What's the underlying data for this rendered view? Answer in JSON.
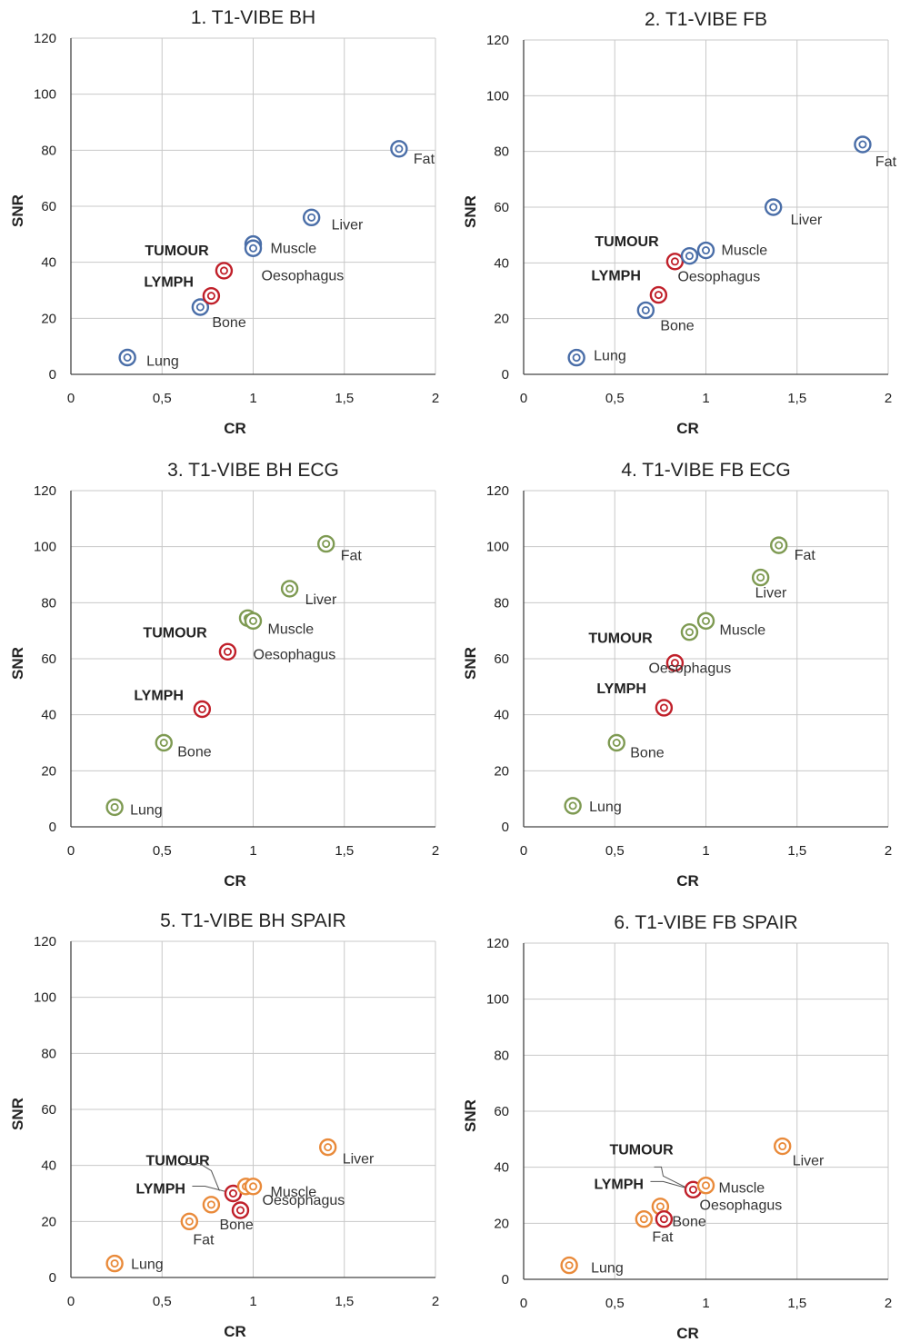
{
  "colors": {
    "set1": "#4a6ea8",
    "set2": "#7e9a52",
    "set3": "#e98a3a",
    "highlight": "#c0202a"
  },
  "chart_data": [
    {
      "type": "scatter",
      "title": "1. T1-VIBE BH",
      "xlabel": "CR",
      "ylabel": "SNR",
      "xlim": [
        0,
        2
      ],
      "ylim": [
        0,
        120
      ],
      "xticks": [
        "0",
        "0,5",
        "1",
        "1,5",
        "2"
      ],
      "yticks": [
        "0",
        "20",
        "40",
        "60",
        "80",
        "100",
        "120"
      ],
      "grid": true,
      "marker_color": "#4a6ea8",
      "points": [
        {
          "label": "Lung",
          "x": 0.31,
          "y": 6,
          "highlight": false
        },
        {
          "label": "Bone",
          "x": 0.71,
          "y": 24,
          "highlight": false
        },
        {
          "label": "LYMPH",
          "x": 0.77,
          "y": 28,
          "highlight": true
        },
        {
          "label": "TUMOUR",
          "x": 0.84,
          "y": 37,
          "highlight": true
        },
        {
          "label": "Muscle",
          "x": 1.0,
          "y": 46.5,
          "highlight": false
        },
        {
          "label": "Oesophagus",
          "x": 1.0,
          "y": 45,
          "highlight": false
        },
        {
          "label": "Liver",
          "x": 1.32,
          "y": 56,
          "highlight": false
        },
        {
          "label": "Fat",
          "x": 1.8,
          "y": 80.5,
          "highlight": false
        }
      ]
    },
    {
      "type": "scatter",
      "title": "2. T1-VIBE FB",
      "xlabel": "CR",
      "ylabel": "SNR",
      "xlim": [
        0,
        2
      ],
      "ylim": [
        0,
        120
      ],
      "xticks": [
        "0",
        "0,5",
        "1",
        "1,5",
        "2"
      ],
      "yticks": [
        "0",
        "20",
        "40",
        "60",
        "80",
        "100",
        "120"
      ],
      "grid": true,
      "marker_color": "#4a6ea8",
      "points": [
        {
          "label": "Lung",
          "x": 0.29,
          "y": 6,
          "highlight": false
        },
        {
          "label": "Bone",
          "x": 0.67,
          "y": 23,
          "highlight": false
        },
        {
          "label": "LYMPH",
          "x": 0.74,
          "y": 28.5,
          "highlight": true
        },
        {
          "label": "TUMOUR",
          "x": 0.83,
          "y": 40.5,
          "highlight": true
        },
        {
          "label": "Oesophagus",
          "x": 0.91,
          "y": 42.5,
          "highlight": false
        },
        {
          "label": "Muscle",
          "x": 1.0,
          "y": 44.5,
          "highlight": false
        },
        {
          "label": "Liver",
          "x": 1.37,
          "y": 60,
          "highlight": false
        },
        {
          "label": "Fat",
          "x": 1.86,
          "y": 82.5,
          "highlight": false
        }
      ]
    },
    {
      "type": "scatter",
      "title": "3. T1-VIBE BH ECG",
      "xlabel": "CR",
      "ylabel": "SNR",
      "xlim": [
        0,
        2
      ],
      "ylim": [
        0,
        120
      ],
      "xticks": [
        "0",
        "0,5",
        "1",
        "1,5",
        "2"
      ],
      "yticks": [
        "0",
        "20",
        "40",
        "60",
        "80",
        "100",
        "120"
      ],
      "grid": true,
      "marker_color": "#7e9a52",
      "points": [
        {
          "label": "Lung",
          "x": 0.24,
          "y": 7,
          "highlight": false
        },
        {
          "label": "Bone",
          "x": 0.51,
          "y": 30,
          "highlight": false
        },
        {
          "label": "LYMPH",
          "x": 0.72,
          "y": 42,
          "highlight": true
        },
        {
          "label": "TUMOUR",
          "x": 0.86,
          "y": 62.5,
          "highlight": true
        },
        {
          "label": "Muscle",
          "x": 0.97,
          "y": 74.5,
          "highlight": false
        },
        {
          "label": "Oesophagus",
          "x": 1.0,
          "y": 73.5,
          "highlight": false
        },
        {
          "label": "Liver",
          "x": 1.2,
          "y": 85,
          "highlight": false
        },
        {
          "label": "Fat",
          "x": 1.4,
          "y": 101,
          "highlight": false
        }
      ]
    },
    {
      "type": "scatter",
      "title": "4. T1-VIBE FB ECG",
      "xlabel": "CR",
      "ylabel": "SNR",
      "xlim": [
        0,
        2
      ],
      "ylim": [
        0,
        120
      ],
      "xticks": [
        "0",
        "0,5",
        "1",
        "1,5",
        "2"
      ],
      "yticks": [
        "0",
        "20",
        "40",
        "60",
        "80",
        "100",
        "120"
      ],
      "grid": true,
      "marker_color": "#7e9a52",
      "points": [
        {
          "label": "Lung",
          "x": 0.27,
          "y": 7.5,
          "highlight": false
        },
        {
          "label": "Bone",
          "x": 0.51,
          "y": 30,
          "highlight": false
        },
        {
          "label": "LYMPH",
          "x": 0.77,
          "y": 42.5,
          "highlight": true
        },
        {
          "label": "TUMOUR",
          "x": 0.83,
          "y": 58.5,
          "highlight": true
        },
        {
          "label": "Oesophagus",
          "x": 0.91,
          "y": 69.5,
          "highlight": false
        },
        {
          "label": "Muscle",
          "x": 1.0,
          "y": 73.5,
          "highlight": false
        },
        {
          "label": "Liver",
          "x": 1.3,
          "y": 89,
          "highlight": false
        },
        {
          "label": "Fat",
          "x": 1.4,
          "y": 100.5,
          "highlight": false
        }
      ]
    },
    {
      "type": "scatter",
      "title": "5. T1-VIBE BH SPAIR",
      "xlabel": "CR",
      "ylabel": "SNR",
      "xlim": [
        0,
        2
      ],
      "ylim": [
        0,
        120
      ],
      "xticks": [
        "0",
        "0,5",
        "1",
        "1,5",
        "2"
      ],
      "yticks": [
        "0",
        "20",
        "40",
        "60",
        "80",
        "100",
        "120"
      ],
      "grid": true,
      "marker_color": "#e98a3a",
      "points": [
        {
          "label": "Lung",
          "x": 0.24,
          "y": 5,
          "highlight": false
        },
        {
          "label": "Fat",
          "x": 0.65,
          "y": 20,
          "highlight": false
        },
        {
          "label": "",
          "x": 0.77,
          "y": 26,
          "highlight": false
        },
        {
          "label": "LYMPH",
          "x": 0.89,
          "y": 30,
          "highlight": true
        },
        {
          "label": "Bone",
          "x": 0.93,
          "y": 24,
          "highlight": true
        },
        {
          "label": "",
          "x": 0.96,
          "y": 32.5,
          "highlight": false
        },
        {
          "label": "Muscle",
          "x": 1.0,
          "y": 32.5,
          "highlight": false
        },
        {
          "label": "Liver",
          "x": 1.41,
          "y": 46.5,
          "highlight": false
        }
      ],
      "annotations": [
        "TUMOUR",
        "Oesophagus"
      ]
    },
    {
      "type": "scatter",
      "title": "6. T1-VIBE FB SPAIR",
      "xlabel": "CR",
      "ylabel": "SNR",
      "xlim": [
        0,
        2
      ],
      "ylim": [
        0,
        120
      ],
      "xticks": [
        "0",
        "0,5",
        "1",
        "1,5",
        "2"
      ],
      "yticks": [
        "0",
        "20",
        "40",
        "60",
        "80",
        "100",
        "120"
      ],
      "grid": true,
      "marker_color": "#e98a3a",
      "points": [
        {
          "label": "Lung",
          "x": 0.25,
          "y": 5,
          "highlight": false
        },
        {
          "label": "Fat",
          "x": 0.66,
          "y": 21.5,
          "highlight": false
        },
        {
          "label": "",
          "x": 0.75,
          "y": 26,
          "highlight": false
        },
        {
          "label": "Bone",
          "x": 0.77,
          "y": 21.5,
          "highlight": true
        },
        {
          "label": "LYMPH",
          "x": 0.93,
          "y": 32,
          "highlight": true
        },
        {
          "label": "Muscle",
          "x": 1.0,
          "y": 33.5,
          "highlight": false
        },
        {
          "label": "Liver",
          "x": 1.42,
          "y": 47.5,
          "highlight": false
        }
      ],
      "annotations": [
        "TUMOUR",
        "Oesophagus"
      ]
    }
  ]
}
